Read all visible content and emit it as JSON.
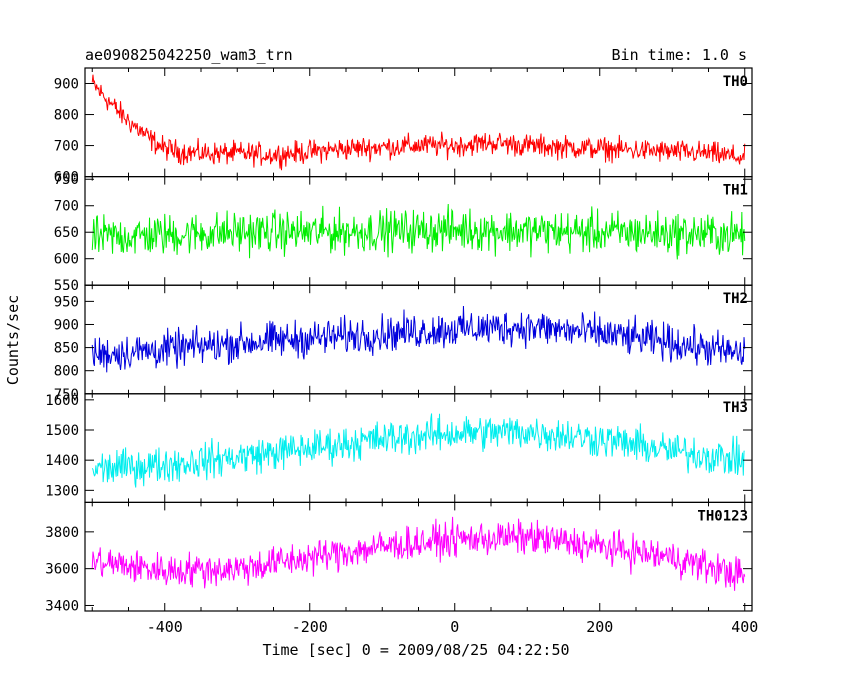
{
  "chart_data": {
    "type": "line",
    "title": "ae090825042250_wam3_trn",
    "subtitle": "Bin time: 1.0 s",
    "xlabel": "Time [sec] 0 = 2009/08/25 04:22:50",
    "ylabel": "Counts/sec",
    "xlim": [
      -510,
      410
    ],
    "x_ticks": [
      -400,
      -200,
      0,
      200,
      400
    ],
    "bin_time_s": 1.0,
    "grid": false,
    "panels": [
      {
        "name": "TH0",
        "color": "#ff0000",
        "ylim": [
          600,
          950
        ],
        "y_ticks": [
          600,
          700,
          800,
          900
        ],
        "x": [
          -500,
          -480,
          -460,
          -440,
          -420,
          -400,
          -380,
          -350,
          -300,
          -250,
          -200,
          -150,
          -100,
          -50,
          0,
          50,
          100,
          150,
          200,
          250,
          300,
          350,
          400
        ],
        "y": [
          900,
          850,
          800,
          760,
          720,
          690,
          680,
          675,
          675,
          670,
          680,
          690,
          695,
          700,
          700,
          710,
          700,
          695,
          690,
          685,
          680,
          675,
          660
        ],
        "noise": 28
      },
      {
        "name": "TH1",
        "color": "#00ee00",
        "ylim": [
          550,
          755
        ],
        "y_ticks": [
          550,
          600,
          650,
          700,
          750
        ],
        "x": [
          -500,
          -400,
          -300,
          -200,
          -100,
          0,
          100,
          200,
          300,
          400
        ],
        "y": [
          640,
          645,
          650,
          650,
          652,
          655,
          652,
          650,
          648,
          645
        ],
        "noise": 30
      },
      {
        "name": "TH2",
        "color": "#0000dd",
        "ylim": [
          750,
          985
        ],
        "y_ticks": [
          750,
          800,
          850,
          900,
          950
        ],
        "x": [
          -500,
          -400,
          -300,
          -200,
          -100,
          0,
          100,
          200,
          300,
          400
        ],
        "y": [
          835,
          845,
          860,
          870,
          880,
          890,
          895,
          880,
          860,
          835
        ],
        "noise": 30
      },
      {
        "name": "TH3",
        "color": "#00eeee",
        "ylim": [
          1260,
          1620
        ],
        "y_ticks": [
          1300,
          1400,
          1500,
          1600
        ],
        "x": [
          -500,
          -400,
          -300,
          -200,
          -100,
          0,
          100,
          200,
          300,
          400
        ],
        "y": [
          1370,
          1385,
          1410,
          1440,
          1470,
          1490,
          1495,
          1470,
          1430,
          1400
        ],
        "noise": 45
      },
      {
        "name": "TH0123",
        "color": "#ff00ff",
        "ylim": [
          3370,
          3960
        ],
        "y_ticks": [
          3400,
          3600,
          3800
        ],
        "x": [
          -500,
          -400,
          -300,
          -200,
          -100,
          0,
          100,
          200,
          300,
          400
        ],
        "y": [
          3640,
          3590,
          3600,
          3660,
          3720,
          3760,
          3770,
          3720,
          3660,
          3560
        ],
        "noise": 70
      }
    ]
  }
}
